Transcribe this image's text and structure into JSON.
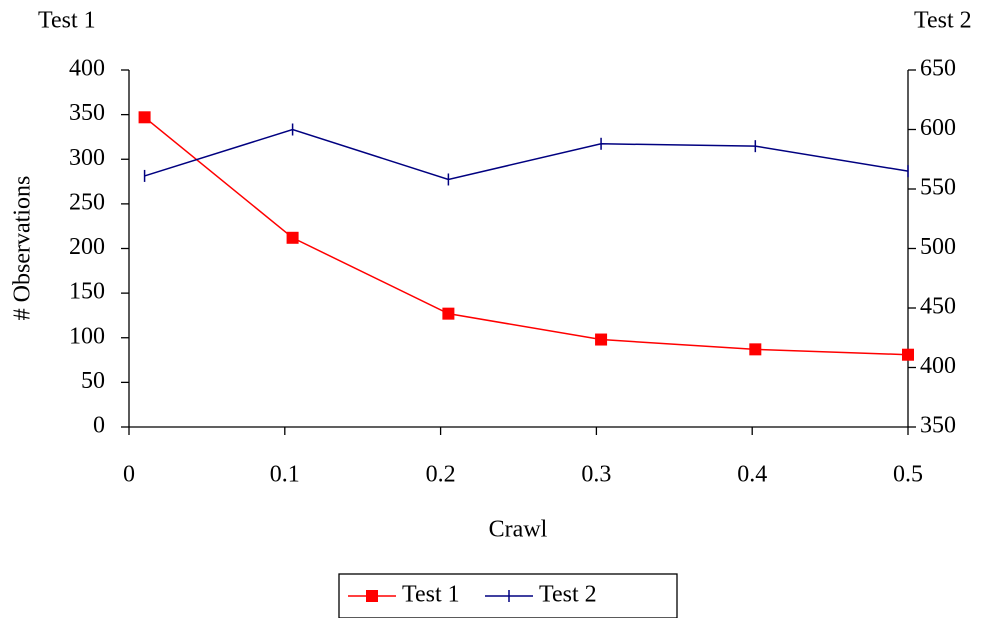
{
  "chart_data": {
    "type": "line",
    "x_label": "Crawl",
    "y_label": "# Observations",
    "y_title": "Test 1",
    "y2_title": "Test 2",
    "x": [
      0.01,
      0.105,
      0.205,
      0.303,
      0.402,
      0.5
    ],
    "series": [
      {
        "name": "Test 1",
        "color": "#ff0000",
        "values": [
          347,
          212,
          127,
          98,
          87,
          81
        ]
      },
      {
        "name": "Test 2",
        "color": "#000080",
        "axis": "y2",
        "values": [
          561,
          600,
          558,
          588,
          586,
          565
        ]
      }
    ],
    "xlim": [
      0,
      0.5
    ],
    "xticks": [
      0,
      0.1,
      0.2,
      0.3,
      0.4,
      0.5
    ],
    "ylim": [
      0,
      400
    ],
    "yticks": [
      0,
      50,
      100,
      150,
      200,
      250,
      300,
      350,
      400
    ],
    "y2lim": [
      350,
      650
    ],
    "y2ticks": [
      350,
      400,
      450,
      500,
      550,
      600,
      650
    ],
    "grid": false,
    "legend": "bottom"
  }
}
